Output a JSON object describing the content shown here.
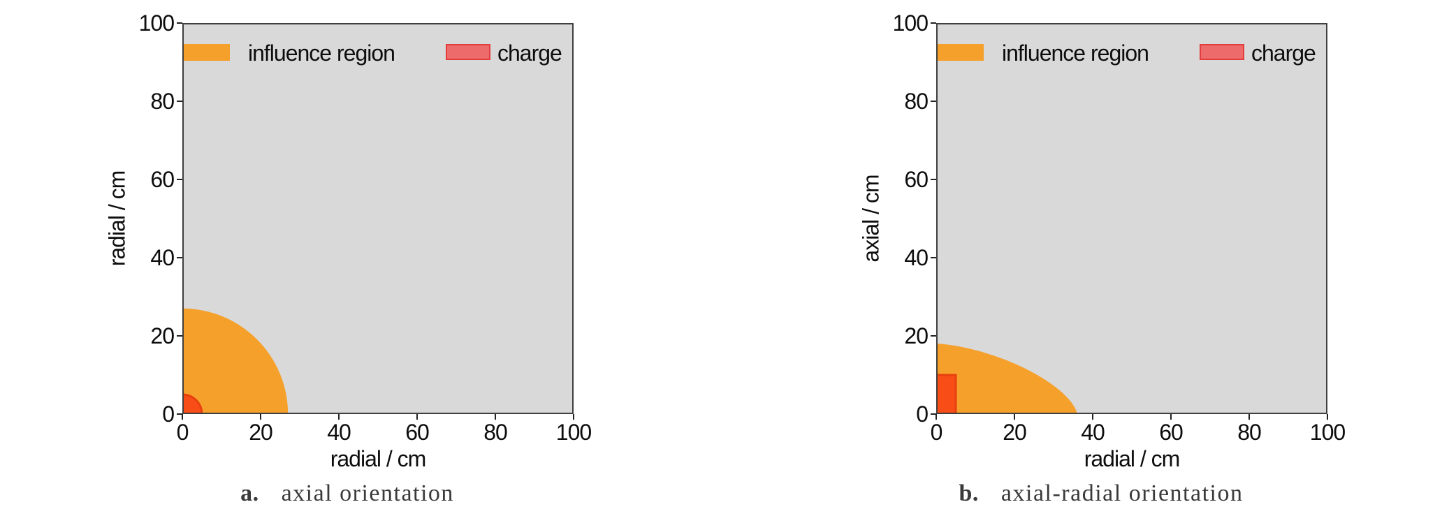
{
  "colors": {
    "plot_bg": "#d9d9d9",
    "influence": "#f5a02b",
    "charge_fill": "#f84d16",
    "charge_edge": "#e8400e",
    "legend_charge_fill": "#ee6b6b",
    "legend_charge_edge": "#e23c3c",
    "frame": "#3f3f3f",
    "text": "#0d0d0d",
    "caption_text": "#3a3a3a"
  },
  "chart_data": [
    {
      "id": "a",
      "type": "area",
      "title": "",
      "xlabel": "radial / cm",
      "ylabel": "radial / cm",
      "xlim": [
        0,
        100
      ],
      "ylim": [
        0,
        100
      ],
      "xticks": [
        0,
        20,
        40,
        60,
        80,
        100
      ],
      "yticks": [
        0,
        20,
        40,
        60,
        80,
        100
      ],
      "grid": false,
      "legend_position": "upper left inside, no frame",
      "legend": [
        {
          "label": "influence region",
          "swatch": "influence"
        },
        {
          "label": "charge",
          "swatch": "charge"
        }
      ],
      "regions": [
        {
          "name": "influence region",
          "shape": "quarter-circle",
          "radius_cm": 27,
          "origin": [
            0,
            0
          ],
          "color_key": "influence"
        },
        {
          "name": "charge",
          "shape": "quarter-circle",
          "radius_cm": 5,
          "origin": [
            0,
            0
          ],
          "color_key": "charge"
        }
      ],
      "caption": {
        "label": "a.",
        "text": "axial orientation"
      }
    },
    {
      "id": "b",
      "type": "area",
      "title": "",
      "xlabel": "radial / cm",
      "ylabel": "axial / cm",
      "xlim": [
        0,
        100
      ],
      "ylim": [
        0,
        100
      ],
      "xticks": [
        0,
        20,
        40,
        60,
        80,
        100
      ],
      "yticks": [
        0,
        20,
        40,
        60,
        80,
        100
      ],
      "grid": false,
      "legend_position": "upper left inside, no frame",
      "legend": [
        {
          "label": "influence region",
          "swatch": "influence"
        },
        {
          "label": "charge",
          "swatch": "charge"
        }
      ],
      "regions": [
        {
          "name": "influence region",
          "shape": "superellipse",
          "rx_cm": 36,
          "ry_cm": 18,
          "exponent": 1.55,
          "origin": [
            0,
            0
          ],
          "color_key": "influence"
        },
        {
          "name": "charge",
          "shape": "rect",
          "width_cm": 5,
          "height_cm": 10,
          "origin": [
            0,
            0
          ],
          "color_key": "charge"
        }
      ],
      "caption": {
        "label": "b.",
        "text": "axial-radial orientation"
      }
    }
  ]
}
